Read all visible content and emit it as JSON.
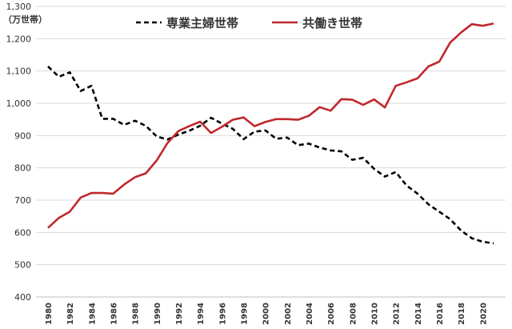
{
  "chart_data": {
    "type": "line",
    "title": "",
    "xlabel": "",
    "ylabel": "（万世帯）",
    "ylim": [
      400,
      1300
    ],
    "yticks": [
      400,
      500,
      600,
      700,
      800,
      900,
      1000,
      1100,
      1200,
      1300
    ],
    "ytick_labels": [
      "400",
      "500",
      "600",
      "700",
      "800",
      "900",
      "1,000",
      "1,100",
      "1,200",
      "1,300"
    ],
    "xlim": [
      1980,
      2021
    ],
    "xticks": [
      1980,
      1982,
      1984,
      1986,
      1988,
      1990,
      1992,
      1994,
      1996,
      1998,
      2000,
      2002,
      2004,
      2006,
      2008,
      2010,
      2012,
      2014,
      2016,
      2018,
      2020
    ],
    "grid": true,
    "legend": "top",
    "x": [
      1980,
      1981,
      1982,
      1983,
      1984,
      1985,
      1986,
      1987,
      1988,
      1989,
      1990,
      1991,
      1992,
      1993,
      1994,
      1995,
      1996,
      1997,
      1998,
      1999,
      2000,
      2001,
      2002,
      2003,
      2004,
      2005,
      2006,
      2007,
      2008,
      2009,
      2010,
      2011,
      2012,
      2013,
      2014,
      2015,
      2016,
      2017,
      2018,
      2019,
      2020,
      2021
    ],
    "series": [
      {
        "name": "専業主婦世帯",
        "color": "#000000",
        "dash": true,
        "values": [
          1114,
          1082,
          1096,
          1038,
          1054,
          952,
          952,
          933,
          946,
          930,
          897,
          888,
          903,
          915,
          930,
          955,
          937,
          921,
          889,
          912,
          916,
          890,
          894,
          870,
          875,
          863,
          854,
          851,
          825,
          831,
          797,
          773,
          787,
          745,
          720,
          687,
          664,
          641,
          606,
          582,
          571,
          566
        ]
      },
      {
        "name": "共働き世帯",
        "color": "#c0282d",
        "dash": false,
        "values": [
          614,
          645,
          664,
          708,
          722,
          722,
          720,
          748,
          771,
          783,
          823,
          877,
          914,
          929,
          943,
          908,
          927,
          949,
          956,
          929,
          942,
          951,
          951,
          949,
          961,
          988,
          977,
          1013,
          1011,
          995,
          1012,
          987,
          1054,
          1065,
          1077,
          1114,
          1129,
          1188,
          1219,
          1245,
          1240,
          1247
        ]
      }
    ]
  }
}
